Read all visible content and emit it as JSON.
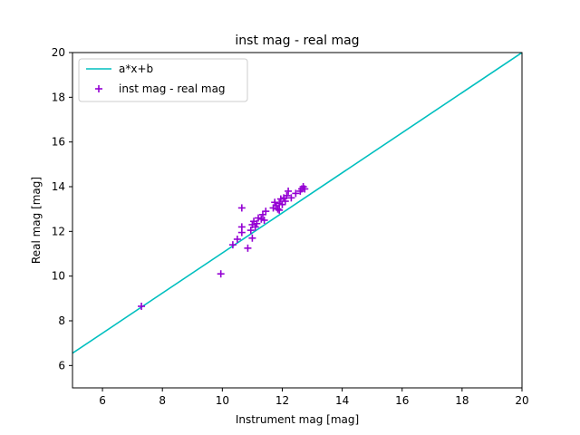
{
  "chart_data": {
    "type": "scatter",
    "title": "inst mag - real mag",
    "xlabel": "Instrument mag [mag]",
    "ylabel": "Real mag [mag]",
    "xlim": [
      5,
      20
    ],
    "ylim": [
      5,
      20
    ],
    "x_ticks": [
      6,
      8,
      10,
      12,
      14,
      16,
      18,
      20
    ],
    "y_ticks": [
      6,
      8,
      10,
      12,
      14,
      16,
      18,
      20
    ],
    "grid": false,
    "legend_position": "upper-left",
    "fit_line": {
      "name": "a*x+b",
      "color": "#00bfbf",
      "x": [
        5,
        20
      ],
      "y": [
        6.55,
        20.0
      ]
    },
    "series": [
      {
        "name": "inst mag - real mag",
        "color": "#9400d3",
        "marker": "plus",
        "points": [
          [
            7.3,
            8.65
          ],
          [
            9.95,
            10.1
          ],
          [
            10.35,
            11.4
          ],
          [
            10.5,
            11.65
          ],
          [
            10.65,
            13.05
          ],
          [
            10.65,
            12.2
          ],
          [
            10.65,
            11.95
          ],
          [
            10.85,
            11.25
          ],
          [
            10.95,
            12.05
          ],
          [
            11.0,
            12.3
          ],
          [
            11.0,
            11.7
          ],
          [
            11.05,
            12.45
          ],
          [
            11.1,
            12.2
          ],
          [
            11.15,
            12.35
          ],
          [
            11.2,
            12.6
          ],
          [
            11.3,
            12.55
          ],
          [
            11.35,
            12.75
          ],
          [
            11.4,
            12.5
          ],
          [
            11.45,
            12.9
          ],
          [
            11.7,
            13.05
          ],
          [
            11.75,
            13.3
          ],
          [
            11.8,
            13.15
          ],
          [
            11.85,
            13.0
          ],
          [
            11.9,
            13.25
          ],
          [
            11.9,
            12.95
          ],
          [
            11.95,
            13.45
          ],
          [
            12.0,
            13.2
          ],
          [
            12.05,
            13.5
          ],
          [
            12.1,
            13.35
          ],
          [
            12.15,
            13.6
          ],
          [
            12.2,
            13.8
          ],
          [
            12.3,
            13.5
          ],
          [
            12.45,
            13.7
          ],
          [
            12.6,
            13.8
          ],
          [
            12.65,
            13.9
          ],
          [
            12.7,
            14.0
          ],
          [
            12.75,
            13.9
          ]
        ]
      }
    ]
  }
}
